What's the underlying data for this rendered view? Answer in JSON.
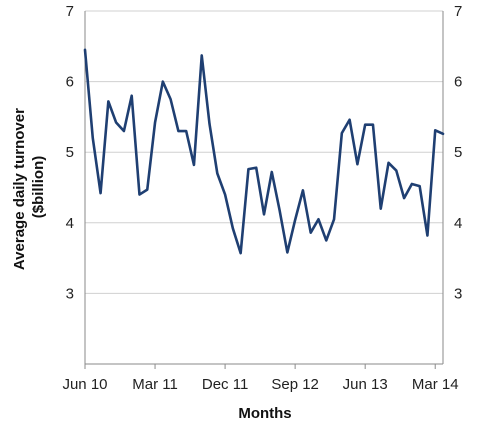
{
  "chart_data": {
    "type": "line",
    "xlabel": "Months",
    "ylabel_line1": "Average daily turnover",
    "ylabel_line2": "($billion)",
    "ylim": [
      2,
      7
    ],
    "yticks": [
      3,
      4,
      5,
      6,
      7
    ],
    "xtick_labels": [
      "Jun 10",
      "Mar 11",
      "Dec 11",
      "Sep 12",
      "Jun 13",
      "Mar 14"
    ],
    "xtick_positions": [
      0,
      9,
      18,
      27,
      36,
      45
    ],
    "grid": true,
    "line_color": "#1f3f72",
    "grid_color": "#d0d0d0",
    "series": [
      {
        "values": [
          6.45,
          5.2,
          4.42,
          5.72,
          5.42,
          5.3,
          5.8,
          4.4,
          4.47,
          5.42,
          6.0,
          5.75,
          5.3,
          5.3,
          4.82,
          6.37,
          5.4,
          4.7,
          4.4,
          3.92,
          3.57,
          4.76,
          4.78,
          4.12,
          4.72,
          4.18,
          3.58,
          4.04,
          4.46,
          3.86,
          4.05,
          3.75,
          4.05,
          5.27,
          5.46,
          4.83,
          5.39,
          5.39,
          4.2,
          4.85,
          4.74,
          4.35,
          4.55,
          4.52,
          3.82,
          5.31,
          5.26
        ]
      }
    ]
  }
}
